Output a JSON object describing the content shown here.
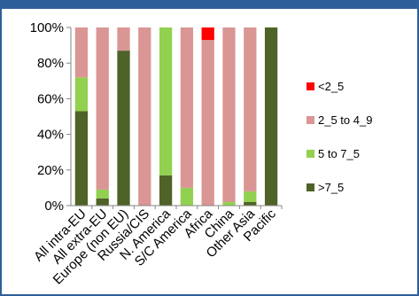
{
  "chart_data": {
    "type": "bar",
    "stacked": true,
    "percent": true,
    "categories": [
      "All intra-EU",
      "All extra-EU",
      "Europe (non EU)",
      "Russia/CIS",
      "N. America",
      "S/C America",
      "Africa",
      "China",
      "Other Asia",
      "Pacific"
    ],
    "series": [
      {
        "name": ">7_5",
        "color": "#4f6228",
        "values": [
          53,
          4,
          87,
          0,
          17,
          0,
          0,
          0,
          2,
          100
        ]
      },
      {
        "name": "5 to 7_5",
        "color": "#92d050",
        "values": [
          19,
          5,
          0,
          0,
          83,
          10,
          0,
          2,
          6,
          0
        ]
      },
      {
        "name": "2_5 to 4_9",
        "color": "#da9694",
        "values": [
          28,
          91,
          13,
          100,
          0,
          90,
          93,
          98,
          92,
          0
        ]
      },
      {
        "name": "<2_5",
        "color": "#ff0000",
        "values": [
          0,
          0,
          0,
          0,
          0,
          0,
          7,
          0,
          0,
          0
        ]
      }
    ],
    "ylim": [
      0,
      100
    ],
    "yticks": [
      "0%",
      "20%",
      "40%",
      "60%",
      "80%",
      "100%"
    ],
    "legend_position": "right",
    "legend_order": [
      "<2_5",
      "2_5 to 4_9",
      "5 to 7_5",
      ">7_5"
    ],
    "grid": false
  }
}
